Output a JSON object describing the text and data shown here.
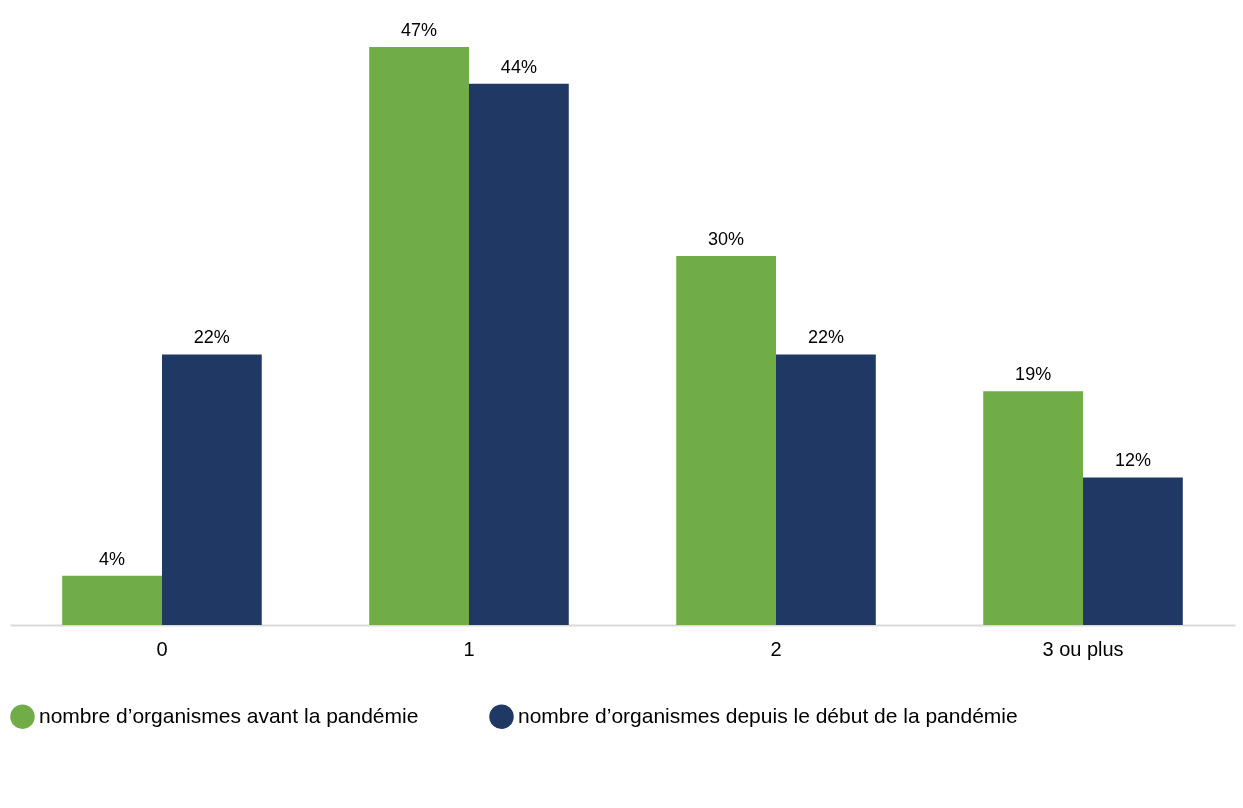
{
  "chart_data": {
    "type": "bar",
    "categories": [
      "0",
      "1",
      "2",
      "3 ou plus"
    ],
    "series": [
      {
        "name": "nombre d’organismes avant la pandémie",
        "color": "#70ad47",
        "values": [
          4,
          47,
          30,
          19
        ],
        "value_labels": [
          "4%",
          "47%",
          "30%",
          "19%"
        ]
      },
      {
        "name": "nombre d’organismes depuis le début de la pandémie",
        "color": "#203864",
        "values": [
          22,
          44,
          22,
          12
        ],
        "value_labels": [
          "22%",
          "44%",
          "22%",
          "12%"
        ]
      }
    ],
    "legend": "bottom"
  }
}
